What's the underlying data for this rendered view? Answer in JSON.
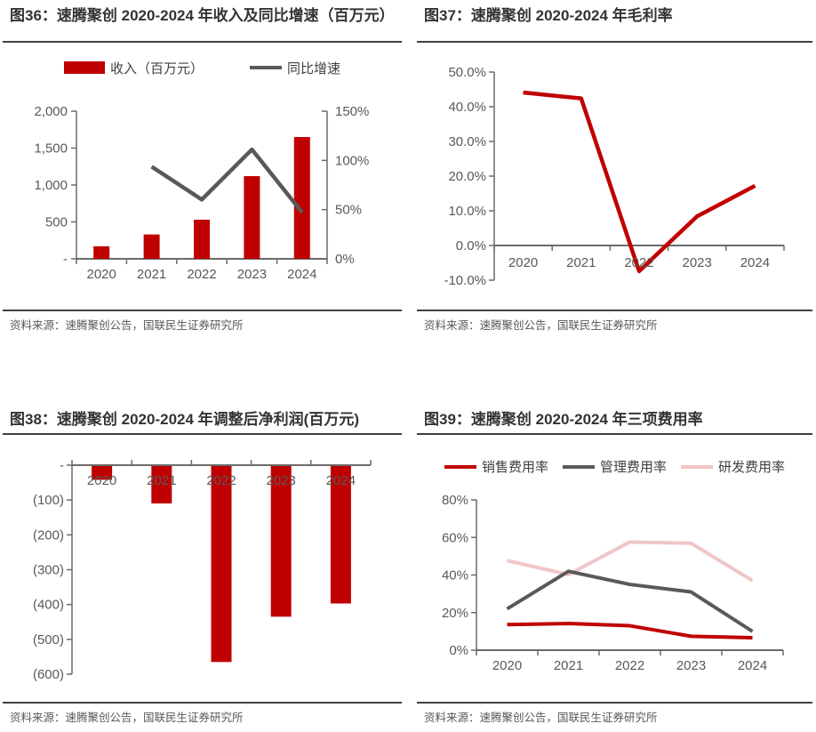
{
  "colors": {
    "accent_red": "#C00000",
    "dark_gray": "#595959",
    "light_pink": "#F0C6C6",
    "axis_gray": "#6B6B6B",
    "rule_dark": "#404040"
  },
  "figures": [
    {
      "id": "fig36",
      "title": "图36：速腾聚创 2020-2024 年收入及同比增速（百万元）",
      "source": "资料来源：速腾聚创公告，国联民生证券研究所",
      "chart_data": {
        "type": "combo",
        "categories": [
          "2020",
          "2021",
          "2022",
          "2023",
          "2024"
        ],
        "series": [
          {
            "name": "收入（百万元）",
            "type": "bar",
            "axis": "left",
            "color": "#C00000",
            "values": [
              170,
              330,
              530,
              1120,
              1650
            ]
          },
          {
            "name": "同比增速",
            "type": "line",
            "axis": "right",
            "color": "#595959",
            "values": [
              null,
              93.6,
              60.2,
              111.1,
              47.2
            ]
          }
        ],
        "left_axis": {
          "min": 0,
          "max": 2000,
          "ticks": [
            {
              "value": 0,
              "label": "-"
            },
            {
              "value": 500,
              "label": "500"
            },
            {
              "value": 1000,
              "label": "1,000"
            },
            {
              "value": 1500,
              "label": "1,500"
            },
            {
              "value": 2000,
              "label": "2,000"
            }
          ]
        },
        "right_axis": {
          "min": 0,
          "max": 150,
          "ticks": [
            {
              "value": 0,
              "label": "0%"
            },
            {
              "value": 50,
              "label": "50%"
            },
            {
              "value": 100,
              "label": "100%"
            },
            {
              "value": 150,
              "label": "150%"
            }
          ]
        },
        "legend_position": "top",
        "grid": false
      }
    },
    {
      "id": "fig37",
      "title": "图37：速腾聚创 2020-2024 年毛利率",
      "source": "资料来源：速腾聚创公告，国联民生证券研究所",
      "chart_data": {
        "type": "line",
        "categories": [
          "2020",
          "2021",
          "2022",
          "2023",
          "2024"
        ],
        "series": [
          {
            "name": "毛利率",
            "color": "#C00000",
            "values": [
              44.1,
              42.4,
              -7.4,
              8.4,
              17.2
            ]
          }
        ],
        "y_axis": {
          "min": -10,
          "max": 50,
          "ticks": [
            {
              "value": -10,
              "label": "-10.0%"
            },
            {
              "value": 0,
              "label": "0.0%"
            },
            {
              "value": 10,
              "label": "10.0%"
            },
            {
              "value": 20,
              "label": "20.0%"
            },
            {
              "value": 30,
              "label": "30.0%"
            },
            {
              "value": 40,
              "label": "40.0%"
            },
            {
              "value": 50,
              "label": "50.0%"
            }
          ]
        },
        "x_axis_at": 0,
        "legend_position": "none",
        "grid": false
      }
    },
    {
      "id": "fig38",
      "title": "图38：速腾聚创 2020-2024 年调整后净利润(百万元)",
      "source": "资料来源：速腾聚创公告，国联民生证券研究所",
      "chart_data": {
        "type": "bar",
        "categories": [
          "2020",
          "2021",
          "2022",
          "2023",
          "2024"
        ],
        "series": [
          {
            "name": "调整后净利润（百万元）",
            "color": "#C00000",
            "values": [
              -42,
              -110,
              -565,
              -435,
              -397
            ]
          }
        ],
        "y_axis": {
          "min": -600,
          "max": 0,
          "ticks": [
            {
              "value": 0,
              "label": "-"
            },
            {
              "value": -100,
              "label": "(100)"
            },
            {
              "value": -200,
              "label": "(200)"
            },
            {
              "value": -300,
              "label": "(300)"
            },
            {
              "value": -400,
              "label": "(400)"
            },
            {
              "value": -500,
              "label": "(500)"
            },
            {
              "value": -600,
              "label": "(600)"
            }
          ]
        },
        "x_axis_at": 0,
        "legend_position": "none",
        "grid": false
      }
    },
    {
      "id": "fig39",
      "title": "图39：速腾聚创 2020-2024 年三项费用率",
      "source": "资料来源：速腾聚创公告，国联民生证券研究所",
      "chart_data": {
        "type": "line",
        "categories": [
          "2020",
          "2021",
          "2022",
          "2023",
          "2024"
        ],
        "series": [
          {
            "name": "销售费用率",
            "color": "#C00000",
            "values": [
              13.6,
              14.2,
              13.0,
              7.4,
              6.6
            ]
          },
          {
            "name": "管理费用率",
            "color": "#595959",
            "values": [
              22.0,
              42.0,
              35.0,
              31.0,
              10.0
            ]
          },
          {
            "name": "研发费用率",
            "color": "#F0C6C6",
            "values": [
              47.7,
              40.2,
              57.6,
              56.9,
              37.0
            ]
          }
        ],
        "y_axis": {
          "min": 0,
          "max": 80,
          "ticks": [
            {
              "value": 0,
              "label": "0%"
            },
            {
              "value": 20,
              "label": "20%"
            },
            {
              "value": 40,
              "label": "40%"
            },
            {
              "value": 60,
              "label": "60%"
            },
            {
              "value": 80,
              "label": "80%"
            }
          ]
        },
        "x_axis_at": 0,
        "legend_position": "top",
        "grid": false
      }
    }
  ]
}
